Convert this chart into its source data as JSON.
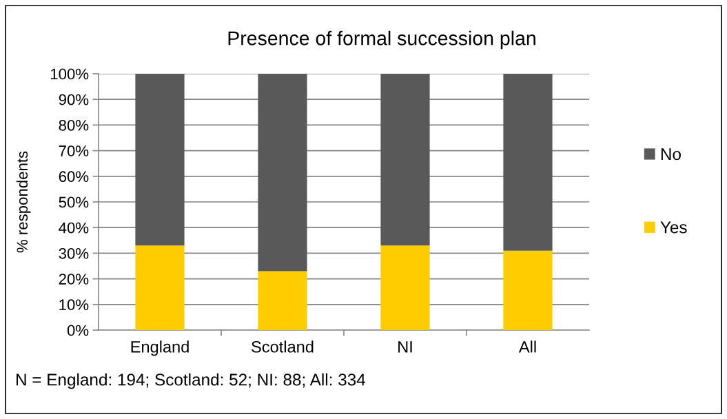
{
  "chart_data": {
    "type": "bar",
    "title": "Presence of formal succession plan",
    "ylabel": "% respondents",
    "categories": [
      "England",
      "Scotland",
      "NI",
      "All"
    ],
    "series": [
      {
        "name": "Yes",
        "color": "#ffcc00",
        "values": [
          33,
          23,
          33,
          31
        ]
      },
      {
        "name": "No",
        "color": "#595959",
        "values": [
          67,
          77,
          67,
          69
        ]
      }
    ],
    "stacked": true,
    "ylim": [
      0,
      100
    ],
    "yticks": [
      {
        "value": 0,
        "label": "0%"
      },
      {
        "value": 10,
        "label": "10%"
      },
      {
        "value": 20,
        "label": "20%"
      },
      {
        "value": 30,
        "label": "30%"
      },
      {
        "value": 40,
        "label": "40%"
      },
      {
        "value": 50,
        "label": "50%"
      },
      {
        "value": 60,
        "label": "60%"
      },
      {
        "value": 70,
        "label": "70%"
      },
      {
        "value": 80,
        "label": "80%"
      },
      {
        "value": 90,
        "label": "90%"
      },
      {
        "value": 100,
        "label": "100%"
      }
    ],
    "grid": "y",
    "legend": "right",
    "annotations": [
      "N = England: 194; Scotland: 52; NI: 88; All: 334"
    ]
  }
}
